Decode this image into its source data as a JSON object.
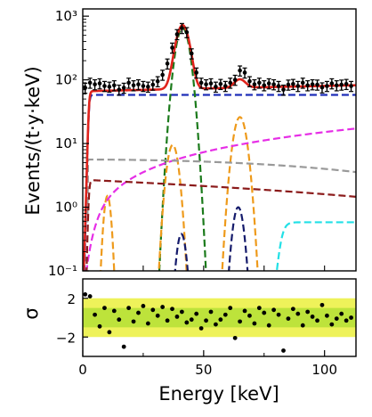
{
  "chart_data": [
    {
      "type": "line",
      "panel": "top",
      "xlabel": "",
      "ylabel": "Events/(t·y·keV)",
      "xlim": [
        0,
        113
      ],
      "ylim": [
        0.1,
        1300
      ],
      "yscale": "log",
      "ytick_labels": [
        "10⁻¹",
        "10⁰",
        "10¹",
        "10²",
        "10³"
      ],
      "ytick_values": [
        0.1,
        1,
        10,
        100,
        1000
      ],
      "grid": false,
      "legend": "none",
      "data_points": {
        "x": [
          1,
          3,
          5,
          7,
          9,
          11,
          13,
          15,
          17,
          19,
          21,
          23,
          25,
          27,
          29,
          31,
          33,
          35,
          37,
          39,
          41,
          43,
          45,
          47,
          49,
          51,
          53,
          55,
          57,
          59,
          61,
          63,
          65,
          67,
          69,
          71,
          73,
          75,
          77,
          79,
          81,
          83,
          85,
          87,
          89,
          91,
          93,
          95,
          97,
          99,
          101,
          103,
          105,
          107,
          109,
          111
        ],
        "y": [
          75,
          90,
          85,
          88,
          80,
          78,
          82,
          70,
          75,
          90,
          82,
          85,
          80,
          78,
          84,
          95,
          120,
          180,
          320,
          520,
          650,
          560,
          260,
          130,
          90,
          85,
          88,
          78,
          86,
          80,
          90,
          100,
          140,
          130,
          95,
          85,
          90,
          82,
          88,
          85,
          80,
          70,
          84,
          86,
          80,
          90,
          82,
          85,
          84,
          76,
          80,
          88,
          82,
          84,
          86,
          80
        ],
        "yerr_rel": 0.18,
        "color": "#000000"
      },
      "series": [
        {
          "style": "solid",
          "color": "#e0231c",
          "role": "total fit"
        },
        {
          "style": "dashed",
          "color": "#1f2fb8",
          "role": "flat background"
        },
        {
          "style": "dashed",
          "color": "#1b7a1b",
          "role": "peak at 41 keV"
        },
        {
          "style": "dashed",
          "color": "#ee9a1b",
          "role": "peaks at 10, 37, 65 keV"
        },
        {
          "style": "dashed",
          "color": "#e62ee6",
          "role": "rising continuum"
        },
        {
          "style": "dashed",
          "color": "#999999",
          "role": "flat component"
        },
        {
          "style": "dashed",
          "color": "#8b1a1a",
          "role": "falling component"
        },
        {
          "style": "dashed",
          "color": "#141a6b",
          "role": "peaks at 43, 64 keV"
        },
        {
          "style": "dashed",
          "color": "#22e0e6",
          "role": "rising component above 80 keV"
        }
      ]
    },
    {
      "type": "scatter",
      "panel": "bottom",
      "xlabel": "Energy [keV]",
      "ylabel": "σ",
      "xlim": [
        0,
        113
      ],
      "ylim": [
        -4,
        4
      ],
      "xtick_labels": [
        "0",
        "50",
        "100"
      ],
      "xtick_values": [
        0,
        50,
        100
      ],
      "xtick_minor": [
        25,
        75
      ],
      "ytick_labels": [
        "2",
        "−2"
      ],
      "ytick_values": [
        2,
        -2
      ],
      "bands": [
        {
          "range": [
            -2,
            2
          ],
          "color": "#eef25a"
        },
        {
          "range": [
            -1,
            1
          ],
          "color": "#bde33b"
        }
      ],
      "x": [
        1,
        3,
        5,
        7,
        9,
        11,
        13,
        15,
        17,
        19,
        21,
        23,
        25,
        27,
        29,
        31,
        33,
        35,
        37,
        39,
        41,
        43,
        45,
        47,
        49,
        51,
        53,
        55,
        57,
        59,
        61,
        63,
        65,
        67,
        69,
        71,
        73,
        75,
        77,
        79,
        81,
        83,
        85,
        87,
        89,
        91,
        93,
        95,
        97,
        99,
        101,
        103,
        105,
        107,
        109,
        111
      ],
      "y": [
        2.4,
        2.2,
        0.3,
        -0.9,
        1.0,
        -1.5,
        0.7,
        -0.2,
        -3.0,
        1.0,
        -0.4,
        0.5,
        1.2,
        -0.6,
        0.8,
        0.2,
        1.1,
        -0.3,
        0.9,
        0.1,
        0.6,
        -0.5,
        -0.2,
        0.4,
        -1.1,
        -0.3,
        0.6,
        -0.7,
        -0.2,
        0.3,
        1.0,
        -2.1,
        -0.4,
        0.7,
        0.2,
        -0.6,
        1.0,
        0.5,
        -0.8,
        0.8,
        0.3,
        -3.4,
        -0.1,
        0.9,
        0.4,
        -0.8,
        0.6,
        0.1,
        -0.3,
        1.3,
        0.2,
        -0.7,
        -0.1,
        0.4,
        -0.3,
        0.0
      ]
    }
  ]
}
